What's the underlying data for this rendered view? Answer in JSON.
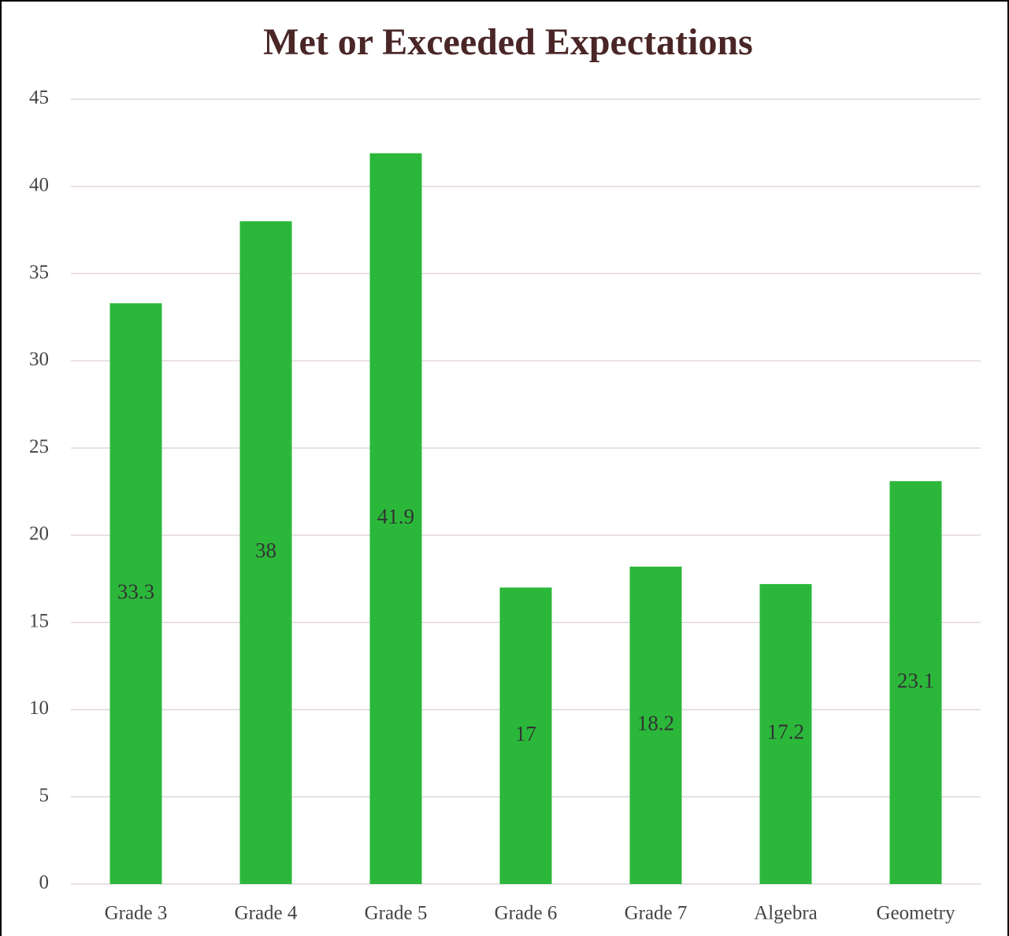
{
  "chart_data": {
    "type": "bar",
    "title": "Met or Exceeded Expectations",
    "categories": [
      "Grade 3",
      "Grade 4",
      "Grade 5",
      "Grade 6",
      "Grade 7",
      "Algebra",
      "Geometry"
    ],
    "values": [
      33.3,
      38,
      41.9,
      17,
      18.2,
      17.2,
      23.1
    ],
    "color": "#2bb83a",
    "ylim": [
      0,
      45
    ],
    "yticks": [
      0,
      5,
      10,
      15,
      20,
      25,
      30,
      35,
      40,
      45
    ],
    "grid": true
  }
}
